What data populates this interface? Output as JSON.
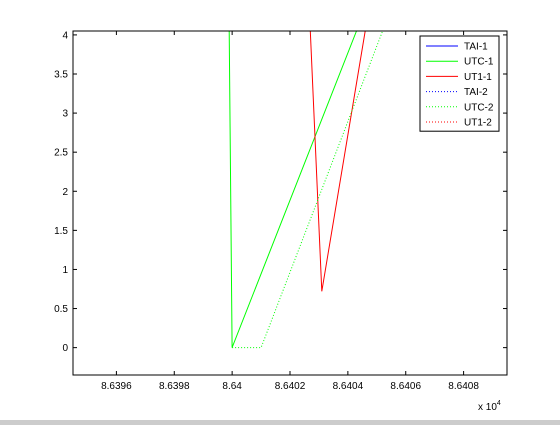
{
  "chart_data": {
    "type": "line",
    "title": "",
    "xlabel": "",
    "ylabel": "",
    "x_multiplier_label": "x 10",
    "x_multiplier_exponent": "4",
    "xlim": [
      86394.5,
      86409.5
    ],
    "ylim": [
      -0.35,
      4.05
    ],
    "x_ticks": [
      86396,
      86398,
      86400,
      86402,
      86404,
      86406,
      86408
    ],
    "x_tick_labels": [
      "8.6396",
      "8.6398",
      "8.64",
      "8.6402",
      "8.6404",
      "8.6406",
      "8.6408"
    ],
    "y_ticks": [
      0,
      0.5,
      1,
      1.5,
      2,
      2.5,
      3,
      3.5,
      4
    ],
    "y_tick_labels": [
      "0",
      "0.5",
      "1",
      "1.5",
      "2",
      "2.5",
      "3",
      "3.5",
      "4"
    ],
    "grid": false,
    "legend_position": "top-right",
    "series": [
      {
        "name": "TAI-1",
        "color": "#0000ff",
        "style": "solid",
        "x": [],
        "y": []
      },
      {
        "name": "UTC-1",
        "color": "#00ff00",
        "style": "solid",
        "x": [
          86399.9,
          86400.0,
          86404.3
        ],
        "y": [
          4.05,
          0.0,
          4.05
        ]
      },
      {
        "name": "UT1-1",
        "color": "#ff0000",
        "style": "solid",
        "x": [
          86402.7,
          86403.1,
          86404.6
        ],
        "y": [
          4.05,
          0.72,
          4.05
        ]
      },
      {
        "name": "TAI-2",
        "color": "#0000ff",
        "style": "dotted",
        "x": [],
        "y": []
      },
      {
        "name": "UTC-2",
        "color": "#00ff00",
        "style": "dotted",
        "x": [
          86400.0,
          86401.0,
          86405.2
        ],
        "y": [
          0.0,
          0.0,
          4.05
        ]
      },
      {
        "name": "UT1-2",
        "color": "#ff0000",
        "style": "dotted",
        "x": [],
        "y": []
      }
    ]
  }
}
